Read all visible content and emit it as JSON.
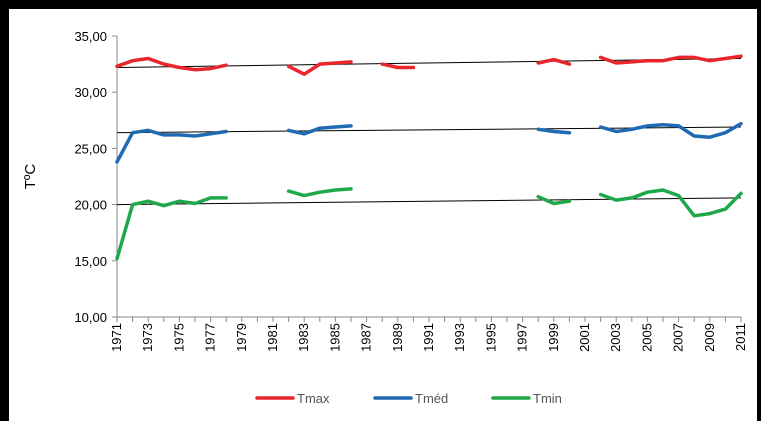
{
  "chart_data": {
    "type": "line",
    "title": "",
    "xlabel": "",
    "ylabel": "TºC",
    "ylim": [
      10,
      35
    ],
    "yticks": [
      "10,00",
      "15,00",
      "20,00",
      "25,00",
      "30,00",
      "35,00"
    ],
    "xlim": [
      1971,
      2011
    ],
    "xticks": [
      "1971",
      "1973",
      "1975",
      "1977",
      "1979",
      "1981",
      "1983",
      "1985",
      "1987",
      "1989",
      "1991",
      "1993",
      "1995",
      "1997",
      "1999",
      "2001",
      "2003",
      "2005",
      "2007",
      "2009",
      "2011"
    ],
    "grid": false,
    "legend": "bottom",
    "series": [
      {
        "name": "Tmax",
        "color": "#e8262b",
        "segments": [
          [
            [
              1971,
              32.3
            ],
            [
              1972,
              32.8
            ],
            [
              1973,
              33.0
            ],
            [
              1974,
              32.5
            ],
            [
              1975,
              32.2
            ],
            [
              1976,
              32.0
            ],
            [
              1977,
              32.1
            ],
            [
              1978,
              32.4
            ]
          ],
          [
            [
              1982,
              32.3
            ],
            [
              1983,
              31.6
            ],
            [
              1984,
              32.5
            ],
            [
              1985,
              32.6
            ],
            [
              1986,
              32.7
            ]
          ],
          [
            [
              1988,
              32.5
            ],
            [
              1989,
              32.2
            ],
            [
              1990,
              32.2
            ]
          ],
          [
            [
              1998,
              32.6
            ],
            [
              1999,
              32.9
            ],
            [
              2000,
              32.5
            ]
          ],
          [
            [
              2002,
              33.1
            ],
            [
              2003,
              32.6
            ],
            [
              2004,
              32.7
            ],
            [
              2005,
              32.8
            ],
            [
              2006,
              32.8
            ],
            [
              2007,
              33.1
            ],
            [
              2008,
              33.1
            ],
            [
              2009,
              32.8
            ],
            [
              2010,
              33.0
            ],
            [
              2011,
              33.2
            ]
          ]
        ],
        "trend": [
          [
            1971,
            32.2
          ],
          [
            2011,
            33.0
          ]
        ]
      },
      {
        "name": "Tméd",
        "color": "#1f6ab2",
        "segments": [
          [
            [
              1971,
              23.8
            ],
            [
              1972,
              26.4
            ],
            [
              1973,
              26.6
            ],
            [
              1974,
              26.2
            ],
            [
              1975,
              26.2
            ],
            [
              1976,
              26.1
            ],
            [
              1977,
              26.3
            ],
            [
              1978,
              26.5
            ]
          ],
          [
            [
              1982,
              26.6
            ],
            [
              1983,
              26.3
            ],
            [
              1984,
              26.8
            ],
            [
              1985,
              26.9
            ],
            [
              1986,
              27.0
            ]
          ],
          [
            [
              1998,
              26.7
            ],
            [
              1999,
              26.5
            ],
            [
              2000,
              26.4
            ]
          ],
          [
            [
              2002,
              26.9
            ],
            [
              2003,
              26.5
            ],
            [
              2004,
              26.7
            ],
            [
              2005,
              27.0
            ],
            [
              2006,
              27.1
            ],
            [
              2007,
              27.0
            ],
            [
              2008,
              26.1
            ],
            [
              2009,
              26.0
            ],
            [
              2010,
              26.4
            ],
            [
              2011,
              27.2
            ]
          ]
        ],
        "trend": [
          [
            1971,
            26.4
          ],
          [
            2011,
            26.9
          ]
        ]
      },
      {
        "name": "Tmin",
        "color": "#1fa84a",
        "segments": [
          [
            [
              1971,
              15.2
            ],
            [
              1972,
              20.0
            ],
            [
              1973,
              20.3
            ],
            [
              1974,
              19.9
            ],
            [
              1975,
              20.3
            ],
            [
              1976,
              20.1
            ],
            [
              1977,
              20.6
            ],
            [
              1978,
              20.6
            ]
          ],
          [
            [
              1982,
              21.2
            ],
            [
              1983,
              20.8
            ],
            [
              1984,
              21.1
            ],
            [
              1985,
              21.3
            ],
            [
              1986,
              21.4
            ]
          ],
          [
            [
              1998,
              20.7
            ],
            [
              1999,
              20.1
            ],
            [
              2000,
              20.3
            ]
          ],
          [
            [
              2002,
              20.9
            ],
            [
              2003,
              20.4
            ],
            [
              2004,
              20.6
            ],
            [
              2005,
              21.1
            ],
            [
              2006,
              21.3
            ],
            [
              2007,
              20.8
            ],
            [
              2008,
              19.0
            ],
            [
              2009,
              19.2
            ],
            [
              2010,
              19.6
            ],
            [
              2011,
              21.0
            ]
          ]
        ],
        "trend": [
          [
            1971,
            20.0
          ],
          [
            2011,
            20.6
          ]
        ]
      }
    ]
  }
}
